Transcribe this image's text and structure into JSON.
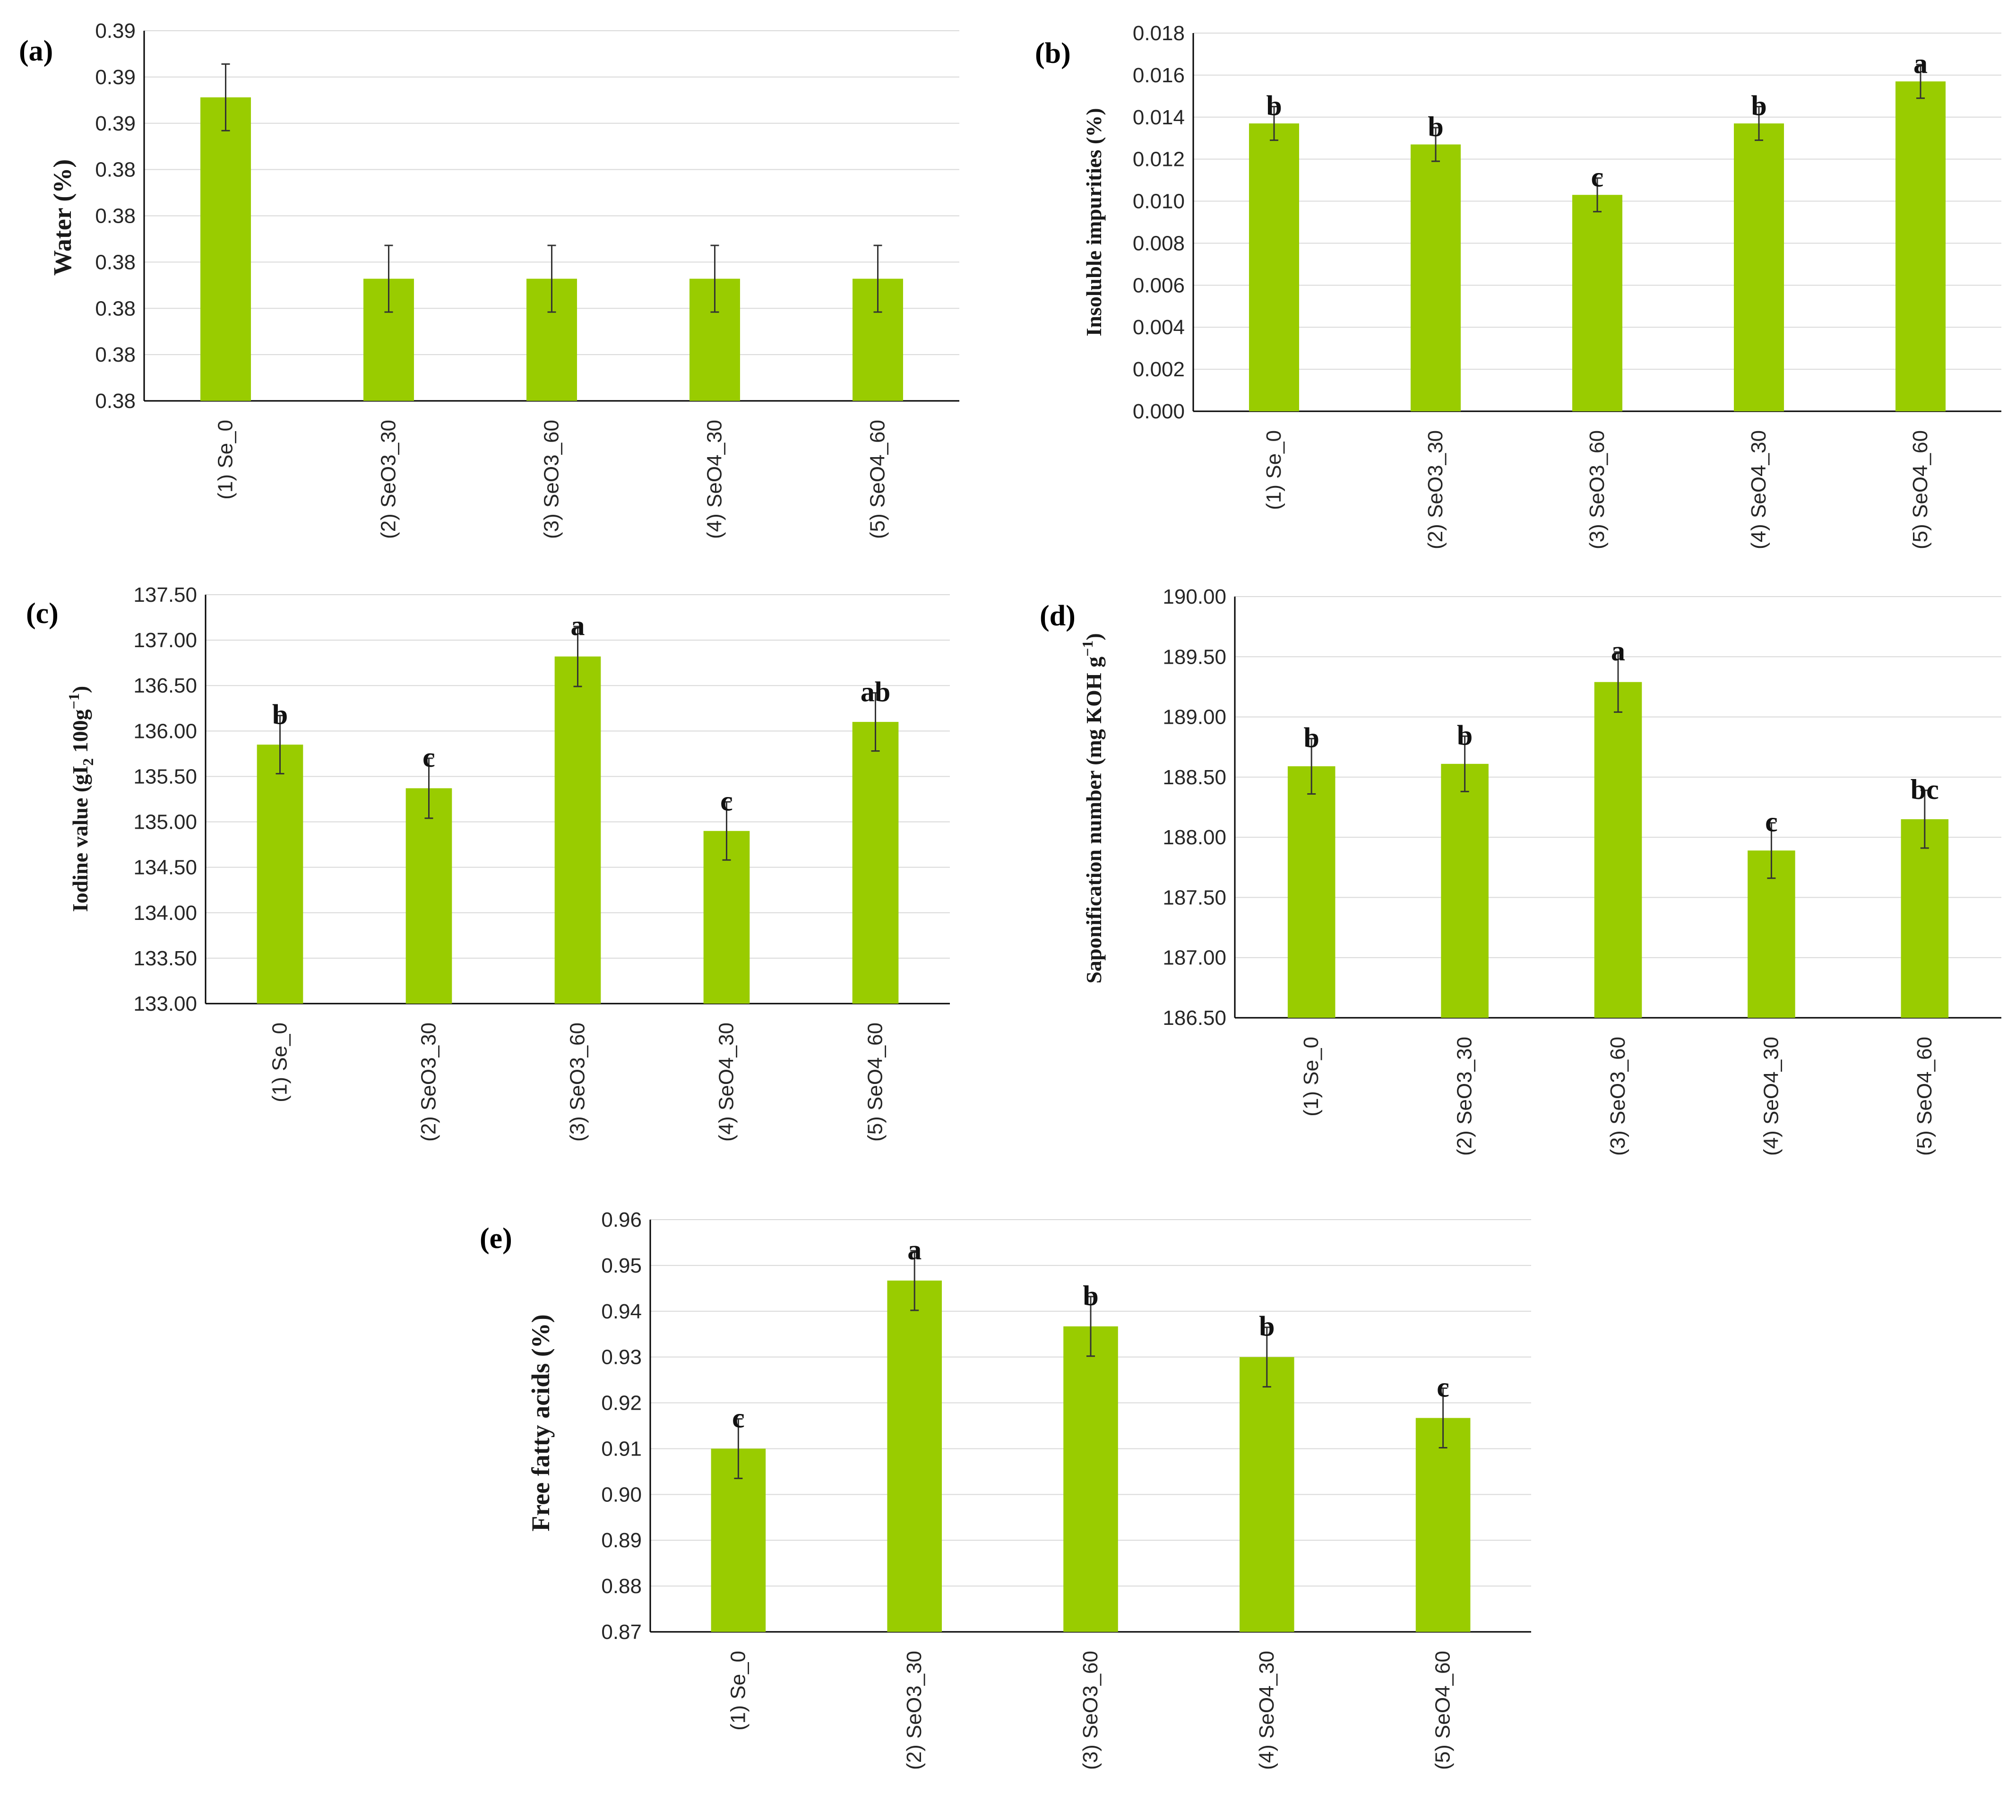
{
  "colors": {
    "bar": "#99cc00",
    "grid": "#d9d9d9",
    "axis": "#000000",
    "error": "#333333"
  },
  "chart_data": [
    {
      "panel": "(a)",
      "type": "bar",
      "ylabel": "Water (%)",
      "categories": [
        "(1) Se_0",
        "(2) SeO3_30",
        "(3) SeO3_60",
        "(4) SeO4_30",
        "(5) SeO4_60"
      ],
      "ylim": [
        0.38,
        0.39
      ],
      "yticks": [
        "0.38",
        "0.38",
        "0.38",
        "0.38",
        "0.38",
        "0.38",
        "0.39",
        "0.39",
        "0.39"
      ],
      "values": [
        0.3882,
        0.3833,
        0.3833,
        0.3833,
        0.3833
      ],
      "errors": [
        0.0009,
        0.0009,
        0.0009,
        0.0009,
        0.0009
      ],
      "letters": [
        "",
        "",
        "",
        "",
        ""
      ]
    },
    {
      "panel": "(b)",
      "type": "bar",
      "ylabel": "Insoluble impurities (%)",
      "categories": [
        "(1) Se_0",
        "(2) SeO3_30",
        "(3) SeO3_60",
        "(4) SeO4_30",
        "(5) SeO4_60"
      ],
      "ylim": [
        0,
        0.018
      ],
      "yticks": [
        "0.000",
        "0.002",
        "0.004",
        "0.006",
        "0.008",
        "0.010",
        "0.012",
        "0.014",
        "0.016",
        "0.018"
      ],
      "values": [
        0.0137,
        0.0127,
        0.0103,
        0.0137,
        0.0157
      ],
      "errors": [
        0.0008,
        0.0008,
        0.0008,
        0.0008,
        0.0008
      ],
      "letters": [
        "b",
        "b",
        "c",
        "b",
        "a"
      ]
    },
    {
      "panel": "(c)",
      "type": "bar",
      "ylabel": "Iodine value (gI",
      "ylabel_sub": "2",
      "ylabel_rest": " 100g",
      "ylabel_sup": "−1",
      "ylabel_end": ")",
      "categories": [
        "(1) Se_0",
        "(2) SeO3_30",
        "(3) SeO3_60",
        "(4) SeO4_30",
        "(5) SeO4_60"
      ],
      "ylim": [
        133.0,
        137.5
      ],
      "yticks": [
        "133.00",
        "133.50",
        "134.00",
        "134.50",
        "135.00",
        "135.50",
        "136.00",
        "136.50",
        "137.00",
        "137.50"
      ],
      "values": [
        135.85,
        135.37,
        136.82,
        134.9,
        136.1
      ],
      "errors": [
        0.32,
        0.33,
        0.33,
        0.32,
        0.32
      ],
      "letters": [
        "b",
        "c",
        "a",
        "c",
        "ab"
      ]
    },
    {
      "panel": "(d)",
      "type": "bar",
      "ylabel": "Saponification number (mg KOH g",
      "ylabel_sup": "−1",
      "ylabel_end": ")",
      "categories": [
        "(1) Se_0",
        "(2) SeO3_30",
        "(3) SeO3_60",
        "(4) SeO4_30",
        "(5) SeO4_60"
      ],
      "ylim": [
        186.5,
        190.0
      ],
      "yticks": [
        "186.50",
        "187.00",
        "187.50",
        "188.00",
        "188.50",
        "189.00",
        "189.50",
        "190.00"
      ],
      "values": [
        188.59,
        188.61,
        189.29,
        187.89,
        188.15
      ],
      "errors": [
        0.23,
        0.23,
        0.25,
        0.23,
        0.24
      ],
      "letters": [
        "b",
        "b",
        "a",
        "c",
        "bc"
      ]
    },
    {
      "panel": "(e)",
      "type": "bar",
      "ylabel": "Free fatty acids (%)",
      "categories": [
        "(1) Se_0",
        "(2) SeO3_30",
        "(3) SeO3_60",
        "(4) SeO4_30",
        "(5) SeO4_60"
      ],
      "ylim": [
        0.87,
        0.96
      ],
      "yticks": [
        "0.87",
        "0.88",
        "0.89",
        "0.90",
        "0.91",
        "0.92",
        "0.93",
        "0.94",
        "0.95",
        "0.96"
      ],
      "values": [
        0.91,
        0.9467,
        0.9367,
        0.93,
        0.9167
      ],
      "errors": [
        0.0065,
        0.0065,
        0.0065,
        0.0065,
        0.0065
      ],
      "letters": [
        "c",
        "a",
        "b",
        "b",
        "c"
      ]
    }
  ]
}
